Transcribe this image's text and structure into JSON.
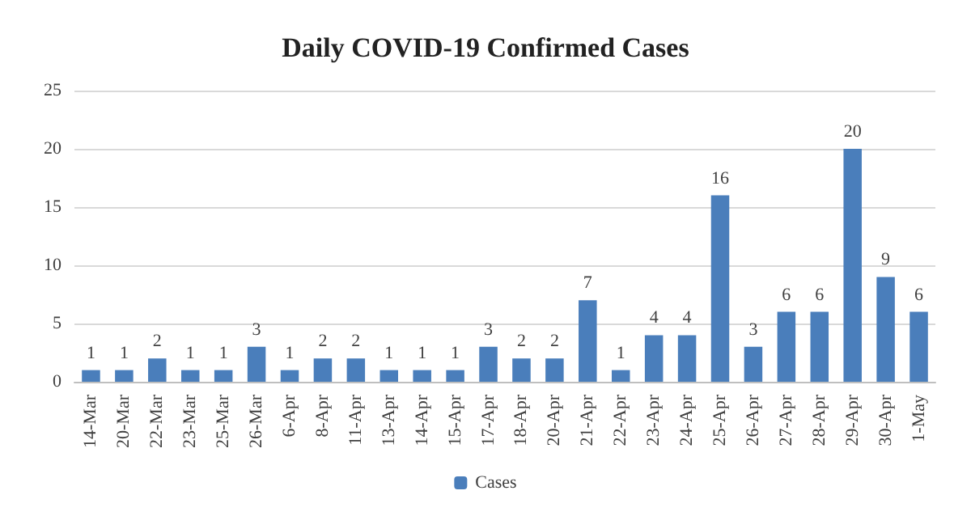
{
  "chart_data": {
    "type": "bar",
    "title": "Daily COVID-19 Confirmed Cases",
    "categories": [
      "14-Mar",
      "20-Mar",
      "22-Mar",
      "23-Mar",
      "25-Mar",
      "26-Mar",
      "6-Apr",
      "8-Apr",
      "11-Apr",
      "13-Apr",
      "14-Apr",
      "15-Apr",
      "17-Apr",
      "18-Apr",
      "20-Apr",
      "21-Apr",
      "22-Apr",
      "23-Apr",
      "24-Apr",
      "25-Apr",
      "26-Apr",
      "27-Apr",
      "28-Apr",
      "29-Apr",
      "30-Apr",
      "1-May"
    ],
    "series": [
      {
        "name": "Cases",
        "color": "#4a7ebb",
        "values": [
          1,
          1,
          2,
          1,
          1,
          3,
          1,
          2,
          2,
          1,
          1,
          1,
          3,
          2,
          2,
          7,
          1,
          4,
          4,
          16,
          3,
          6,
          6,
          20,
          9,
          6
        ]
      }
    ],
    "ylim": [
      0,
      25
    ],
    "yticks": [
      0,
      5,
      10,
      15,
      20,
      25
    ],
    "grid": "y",
    "legend": "bottom",
    "data_labels": true
  }
}
